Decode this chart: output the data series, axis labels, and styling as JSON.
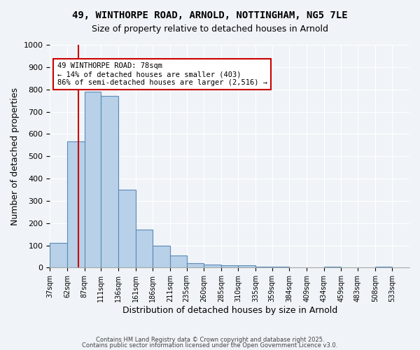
{
  "title1": "49, WINTHORPE ROAD, ARNOLD, NOTTINGHAM, NG5 7LE",
  "title2": "Size of property relative to detached houses in Arnold",
  "xlabel": "Distribution of detached houses by size in Arnold",
  "ylabel": "Number of detached properties",
  "bar_color": "#b8d0e8",
  "bar_edge_color": "#5a8ab8",
  "bin_labels": [
    "37sqm",
    "62sqm",
    "87sqm",
    "111sqm",
    "136sqm",
    "161sqm",
    "186sqm",
    "211sqm",
    "235sqm",
    "260sqm",
    "285sqm",
    "310sqm",
    "335sqm",
    "359sqm",
    "384sqm",
    "409sqm",
    "434sqm",
    "459sqm",
    "483sqm",
    "508sqm",
    "533sqm"
  ],
  "bin_edges": [
    37,
    62,
    87,
    111,
    136,
    161,
    186,
    211,
    235,
    260,
    285,
    310,
    335,
    359,
    384,
    409,
    434,
    459,
    483,
    508,
    533
  ],
  "bar_heights": [
    110,
    565,
    790,
    770,
    350,
    170,
    100,
    55,
    20,
    15,
    10,
    10,
    5,
    5,
    0,
    0,
    5,
    0,
    0,
    5
  ],
  "ylim": [
    0,
    1000
  ],
  "yticks": [
    0,
    100,
    200,
    300,
    400,
    500,
    600,
    700,
    800,
    900,
    1000
  ],
  "property_size": 78,
  "vline_color": "#cc0000",
  "annotation_text": "49 WINTHORPE ROAD: 78sqm\n← 14% of detached houses are smaller (403)\n86% of semi-detached houses are larger (2,516) →",
  "annotation_box_color": "#cc0000",
  "footer1": "Contains HM Land Registry data © Crown copyright and database right 2025.",
  "footer2": "Contains public sector information licensed under the Open Government Licence v3.0.",
  "background_color": "#f0f4f8",
  "grid_color": "#ffffff"
}
